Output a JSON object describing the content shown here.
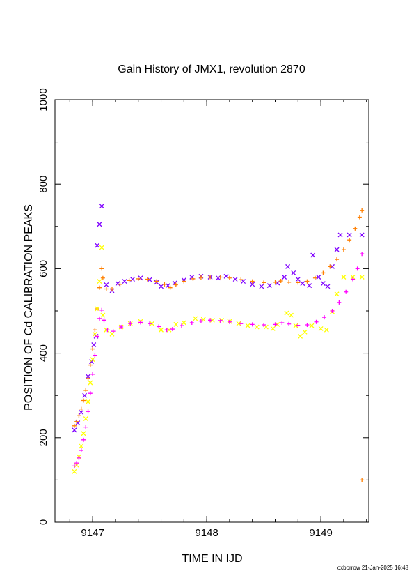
{
  "chart_data": {
    "type": "scatter",
    "title": "Gain History of JMX1, revolution 2870",
    "xlabel": "TIME IN IJD",
    "ylabel": "POSITION OF Cd CALIBRATION PEAKS",
    "xlim": [
      9146.67,
      9149.42
    ],
    "ylim": [
      0,
      1000
    ],
    "x_ticks": [
      "9147",
      "9148",
      "9149"
    ],
    "y_ticks": [
      "0",
      "200",
      "400",
      "600",
      "800",
      "1000"
    ],
    "grid": false,
    "legend": "none",
    "series": [
      {
        "marker": "x",
        "color": "#7f00ff",
        "points": [
          [
            9146.84,
            218
          ],
          [
            9146.87,
            235
          ],
          [
            9146.9,
            260
          ],
          [
            9146.93,
            300
          ],
          [
            9146.96,
            345
          ],
          [
            9146.99,
            380
          ],
          [
            9147.01,
            420
          ],
          [
            9147.03,
            440
          ],
          [
            9147.04,
            655
          ],
          [
            9147.06,
            705
          ],
          [
            9147.08,
            748
          ],
          [
            9147.12,
            562
          ],
          [
            9147.17,
            548
          ],
          [
            9147.22,
            565
          ],
          [
            9147.28,
            570
          ],
          [
            9147.35,
            575
          ],
          [
            9147.42,
            578
          ],
          [
            9147.5,
            574
          ],
          [
            9147.56,
            568
          ],
          [
            9147.6,
            558
          ],
          [
            9147.66,
            560
          ],
          [
            9147.72,
            566
          ],
          [
            9147.8,
            573
          ],
          [
            9147.87,
            580
          ],
          [
            9147.95,
            582
          ],
          [
            9148.03,
            580
          ],
          [
            9148.1,
            578
          ],
          [
            9148.17,
            582
          ],
          [
            9148.25,
            575
          ],
          [
            9148.32,
            570
          ],
          [
            9148.4,
            563
          ],
          [
            9148.48,
            558
          ],
          [
            9148.55,
            560
          ],
          [
            9148.62,
            566
          ],
          [
            9148.68,
            580
          ],
          [
            9148.71,
            605
          ],
          [
            9148.76,
            590
          ],
          [
            9148.8,
            575
          ],
          [
            9148.84,
            565
          ],
          [
            9148.9,
            560
          ],
          [
            9148.93,
            632
          ],
          [
            9148.98,
            580
          ],
          [
            9149.02,
            565
          ],
          [
            9149.06,
            558
          ],
          [
            9149.1,
            605
          ],
          [
            9149.14,
            645
          ],
          [
            9149.17,
            680
          ],
          [
            9149.25,
            680
          ],
          [
            9149.36,
            680
          ]
        ]
      },
      {
        "marker": "+",
        "color": "#ff7f00",
        "points": [
          [
            9146.84,
            228
          ],
          [
            9146.86,
            238
          ],
          [
            9146.88,
            252
          ],
          [
            9146.9,
            268
          ],
          [
            9146.92,
            288
          ],
          [
            9146.94,
            312
          ],
          [
            9146.96,
            340
          ],
          [
            9146.98,
            372
          ],
          [
            9147.0,
            410
          ],
          [
            9147.02,
            455
          ],
          [
            9147.04,
            505
          ],
          [
            9147.06,
            555
          ],
          [
            9147.08,
            600
          ],
          [
            9147.09,
            578
          ],
          [
            9147.12,
            552
          ],
          [
            9147.17,
            552
          ],
          [
            9147.24,
            563
          ],
          [
            9147.32,
            572
          ],
          [
            9147.4,
            576
          ],
          [
            9147.48,
            575
          ],
          [
            9147.56,
            570
          ],
          [
            9147.63,
            563
          ],
          [
            9147.68,
            555
          ],
          [
            9147.73,
            562
          ],
          [
            9147.8,
            570
          ],
          [
            9147.88,
            576
          ],
          [
            9147.95,
            579
          ],
          [
            9148.03,
            580
          ],
          [
            9148.12,
            580
          ],
          [
            9148.2,
            578
          ],
          [
            9148.3,
            574
          ],
          [
            9148.4,
            570
          ],
          [
            9148.5,
            567
          ],
          [
            9148.6,
            568
          ],
          [
            9148.65,
            571
          ],
          [
            9148.72,
            568
          ],
          [
            9148.8,
            567
          ],
          [
            9148.88,
            570
          ],
          [
            9148.95,
            578
          ],
          [
            9149.02,
            590
          ],
          [
            9149.08,
            605
          ],
          [
            9149.14,
            622
          ],
          [
            9149.2,
            645
          ],
          [
            9149.25,
            668
          ],
          [
            9149.3,
            695
          ],
          [
            9149.34,
            722
          ],
          [
            9149.36,
            738
          ],
          [
            9149.36,
            100
          ]
        ]
      },
      {
        "marker": "x",
        "color": "#ffff00",
        "points": [
          [
            9146.84,
            120
          ],
          [
            9146.86,
            135
          ],
          [
            9146.88,
            155
          ],
          [
            9146.9,
            180
          ],
          [
            9146.92,
            210
          ],
          [
            9146.94,
            245
          ],
          [
            9146.96,
            285
          ],
          [
            9146.98,
            330
          ],
          [
            9147.0,
            385
          ],
          [
            9147.02,
            445
          ],
          [
            9147.04,
            505
          ],
          [
            9147.06,
            570
          ],
          [
            9147.08,
            650
          ],
          [
            9147.09,
            490
          ],
          [
            9147.12,
            455
          ],
          [
            9147.17,
            445
          ],
          [
            9147.25,
            462
          ],
          [
            9147.33,
            470
          ],
          [
            9147.42,
            475
          ],
          [
            9147.52,
            470
          ],
          [
            9147.6,
            455
          ],
          [
            9147.67,
            455
          ],
          [
            9147.73,
            468
          ],
          [
            9147.8,
            472
          ],
          [
            9147.9,
            482
          ],
          [
            9147.97,
            480
          ],
          [
            9148.05,
            478
          ],
          [
            9148.13,
            478
          ],
          [
            9148.2,
            475
          ],
          [
            9148.28,
            470
          ],
          [
            9148.36,
            465
          ],
          [
            9148.44,
            462
          ],
          [
            9148.52,
            462
          ],
          [
            9148.58,
            458
          ],
          [
            9148.62,
            468
          ],
          [
            9148.7,
            495
          ],
          [
            9148.74,
            490
          ],
          [
            9148.78,
            465
          ],
          [
            9148.82,
            440
          ],
          [
            9148.86,
            450
          ],
          [
            9148.92,
            465
          ],
          [
            9149.0,
            458
          ],
          [
            9149.05,
            455
          ],
          [
            9149.1,
            498
          ],
          [
            9149.14,
            540
          ],
          [
            9149.2,
            580
          ],
          [
            9149.28,
            580
          ],
          [
            9149.36,
            580
          ]
        ]
      },
      {
        "marker": "+",
        "color": "#ff00ff",
        "points": [
          [
            9146.84,
            133
          ],
          [
            9146.86,
            140
          ],
          [
            9146.88,
            152
          ],
          [
            9146.9,
            170
          ],
          [
            9146.92,
            195
          ],
          [
            9146.94,
            225
          ],
          [
            9146.96,
            262
          ],
          [
            9146.98,
            305
          ],
          [
            9147.0,
            350
          ],
          [
            9147.02,
            395
          ],
          [
            9147.04,
            440
          ],
          [
            9147.06,
            482
          ],
          [
            9147.08,
            502
          ],
          [
            9147.1,
            478
          ],
          [
            9147.13,
            455
          ],
          [
            9147.18,
            452
          ],
          [
            9147.25,
            462
          ],
          [
            9147.33,
            470
          ],
          [
            9147.42,
            473
          ],
          [
            9147.5,
            470
          ],
          [
            9147.58,
            463
          ],
          [
            9147.65,
            455
          ],
          [
            9147.7,
            457
          ],
          [
            9147.78,
            465
          ],
          [
            9147.87,
            472
          ],
          [
            9147.95,
            476
          ],
          [
            9148.03,
            478
          ],
          [
            9148.12,
            477
          ],
          [
            9148.2,
            474
          ],
          [
            9148.3,
            470
          ],
          [
            9148.4,
            468
          ],
          [
            9148.5,
            467
          ],
          [
            9148.6,
            468
          ],
          [
            9148.66,
            472
          ],
          [
            9148.72,
            469
          ],
          [
            9148.8,
            466
          ],
          [
            9148.88,
            467
          ],
          [
            9148.96,
            474
          ],
          [
            9149.03,
            485
          ],
          [
            9149.1,
            500
          ],
          [
            9149.16,
            520
          ],
          [
            9149.22,
            545
          ],
          [
            9149.28,
            575
          ],
          [
            9149.32,
            600
          ],
          [
            9149.36,
            635
          ]
        ]
      }
    ]
  },
  "footer": "oxborrow 21-Jan-2025 16:48"
}
